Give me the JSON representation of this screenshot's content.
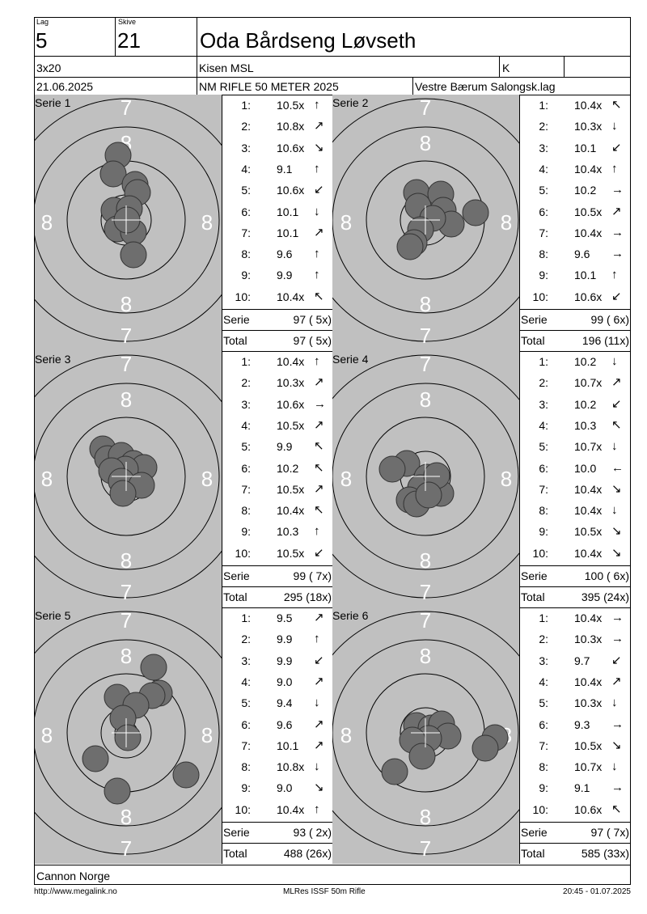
{
  "header": {
    "lag_label": "Lag",
    "lag_value": "5",
    "skive_label": "Skive",
    "skive_value": "21",
    "shooter_name": "Oda Bårdseng Løvseth",
    "program": "3x20",
    "club_short": "Kisen MSL",
    "class": "K",
    "date": "21.06.2025",
    "event": "NM RIFLE 50 METER 2025",
    "organizer": "Vestre Bærum Salongsk.lag"
  },
  "target_rings": {
    "ring_8": "8",
    "ring_7": "7"
  },
  "series": [
    {
      "label": "Serie 1",
      "shots": [
        {
          "no": "1:",
          "score": "10.5x",
          "arrow": "n"
        },
        {
          "no": "2:",
          "score": "10.8x",
          "arrow": "ne"
        },
        {
          "no": "3:",
          "score": "10.6x",
          "arrow": "se"
        },
        {
          "no": "4:",
          "score": "9.1",
          "arrow": "n"
        },
        {
          "no": "5:",
          "score": "10.6x",
          "arrow": "sw"
        },
        {
          "no": "6:",
          "score": "10.1",
          "arrow": "s"
        },
        {
          "no": "7:",
          "score": "10.1",
          "arrow": "ne"
        },
        {
          "no": "8:",
          "score": "9.6",
          "arrow": "n"
        },
        {
          "no": "9:",
          "score": "9.9",
          "arrow": "n"
        },
        {
          "no": "10:",
          "score": "10.4x",
          "arrow": "nw"
        }
      ],
      "serie_label": "Serie",
      "serie_value": "97 ( 5x)",
      "total_label": "Total",
      "total_value": "97 ( 5x)"
    },
    {
      "label": "Serie 2",
      "shots": [
        {
          "no": "1:",
          "score": "10.4x",
          "arrow": "nw"
        },
        {
          "no": "2:",
          "score": "10.3x",
          "arrow": "s"
        },
        {
          "no": "3:",
          "score": "10.1",
          "arrow": "sw"
        },
        {
          "no": "4:",
          "score": "10.4x",
          "arrow": "n"
        },
        {
          "no": "5:",
          "score": "10.2",
          "arrow": "e"
        },
        {
          "no": "6:",
          "score": "10.5x",
          "arrow": "ne"
        },
        {
          "no": "7:",
          "score": "10.4x",
          "arrow": "e"
        },
        {
          "no": "8:",
          "score": "9.6",
          "arrow": "e"
        },
        {
          "no": "9:",
          "score": "10.1",
          "arrow": "n"
        },
        {
          "no": "10:",
          "score": "10.6x",
          "arrow": "sw"
        }
      ],
      "serie_label": "Serie",
      "serie_value": "99 ( 6x)",
      "total_label": "Total",
      "total_value": "196 (11x)"
    },
    {
      "label": "Serie 3",
      "shots": [
        {
          "no": "1:",
          "score": "10.4x",
          "arrow": "n"
        },
        {
          "no": "2:",
          "score": "10.3x",
          "arrow": "ne"
        },
        {
          "no": "3:",
          "score": "10.6x",
          "arrow": "e"
        },
        {
          "no": "4:",
          "score": "10.5x",
          "arrow": "ne"
        },
        {
          "no": "5:",
          "score": "9.9",
          "arrow": "nw"
        },
        {
          "no": "6:",
          "score": "10.2",
          "arrow": "nw"
        },
        {
          "no": "7:",
          "score": "10.5x",
          "arrow": "ne"
        },
        {
          "no": "8:",
          "score": "10.4x",
          "arrow": "nw"
        },
        {
          "no": "9:",
          "score": "10.3",
          "arrow": "n"
        },
        {
          "no": "10:",
          "score": "10.5x",
          "arrow": "sw"
        }
      ],
      "serie_label": "Serie",
      "serie_value": "99 ( 7x)",
      "total_label": "Total",
      "total_value": "295 (18x)"
    },
    {
      "label": "Serie 4",
      "shots": [
        {
          "no": "1:",
          "score": "10.2",
          "arrow": "s"
        },
        {
          "no": "2:",
          "score": "10.7x",
          "arrow": "ne"
        },
        {
          "no": "3:",
          "score": "10.2",
          "arrow": "sw"
        },
        {
          "no": "4:",
          "score": "10.3",
          "arrow": "nw"
        },
        {
          "no": "5:",
          "score": "10.7x",
          "arrow": "s"
        },
        {
          "no": "6:",
          "score": "10.0",
          "arrow": "w"
        },
        {
          "no": "7:",
          "score": "10.4x",
          "arrow": "se"
        },
        {
          "no": "8:",
          "score": "10.4x",
          "arrow": "s"
        },
        {
          "no": "9:",
          "score": "10.5x",
          "arrow": "se"
        },
        {
          "no": "10:",
          "score": "10.4x",
          "arrow": "se"
        }
      ],
      "serie_label": "Serie",
      "serie_value": "100 ( 6x)",
      "total_label": "Total",
      "total_value": "395 (24x)"
    },
    {
      "label": "Serie 5",
      "shots": [
        {
          "no": "1:",
          "score": "9.5",
          "arrow": "ne"
        },
        {
          "no": "2:",
          "score": "9.9",
          "arrow": "n"
        },
        {
          "no": "3:",
          "score": "9.9",
          "arrow": "sw"
        },
        {
          "no": "4:",
          "score": "9.0",
          "arrow": "ne"
        },
        {
          "no": "5:",
          "score": "9.4",
          "arrow": "s"
        },
        {
          "no": "6:",
          "score": "9.6",
          "arrow": "ne"
        },
        {
          "no": "7:",
          "score": "10.1",
          "arrow": "ne"
        },
        {
          "no": "8:",
          "score": "10.8x",
          "arrow": "s"
        },
        {
          "no": "9:",
          "score": "9.0",
          "arrow": "se"
        },
        {
          "no": "10:",
          "score": "10.4x",
          "arrow": "n"
        }
      ],
      "serie_label": "Serie",
      "serie_value": "93 ( 2x)",
      "total_label": "Total",
      "total_value": "488 (26x)"
    },
    {
      "label": "Serie 6",
      "shots": [
        {
          "no": "1:",
          "score": "10.4x",
          "arrow": "e"
        },
        {
          "no": "2:",
          "score": "10.3x",
          "arrow": "e"
        },
        {
          "no": "3:",
          "score": "9.7",
          "arrow": "sw"
        },
        {
          "no": "4:",
          "score": "10.4x",
          "arrow": "ne"
        },
        {
          "no": "5:",
          "score": "10.3x",
          "arrow": "s"
        },
        {
          "no": "6:",
          "score": "9.3",
          "arrow": "e"
        },
        {
          "no": "7:",
          "score": "10.5x",
          "arrow": "se"
        },
        {
          "no": "8:",
          "score": "10.7x",
          "arrow": "s"
        },
        {
          "no": "9:",
          "score": "9.1",
          "arrow": "e"
        },
        {
          "no": "10:",
          "score": "10.6x",
          "arrow": "nw"
        }
      ],
      "serie_label": "Serie",
      "serie_value": "97 ( 7x)",
      "total_label": "Total",
      "total_value": "585 (33x)"
    }
  ],
  "club_full": "Cannon Norge",
  "footer": {
    "url": "http://www.megalink.no",
    "software": "MLRes ISSF 50m Rifle",
    "timestamp": "20:45 - 01.07.2025"
  },
  "colors": {
    "target_bg": "#c0c0c0",
    "shot_fill": "#6e6e6e",
    "ring_stroke": "#000000",
    "ring_label": "#ffffff"
  }
}
